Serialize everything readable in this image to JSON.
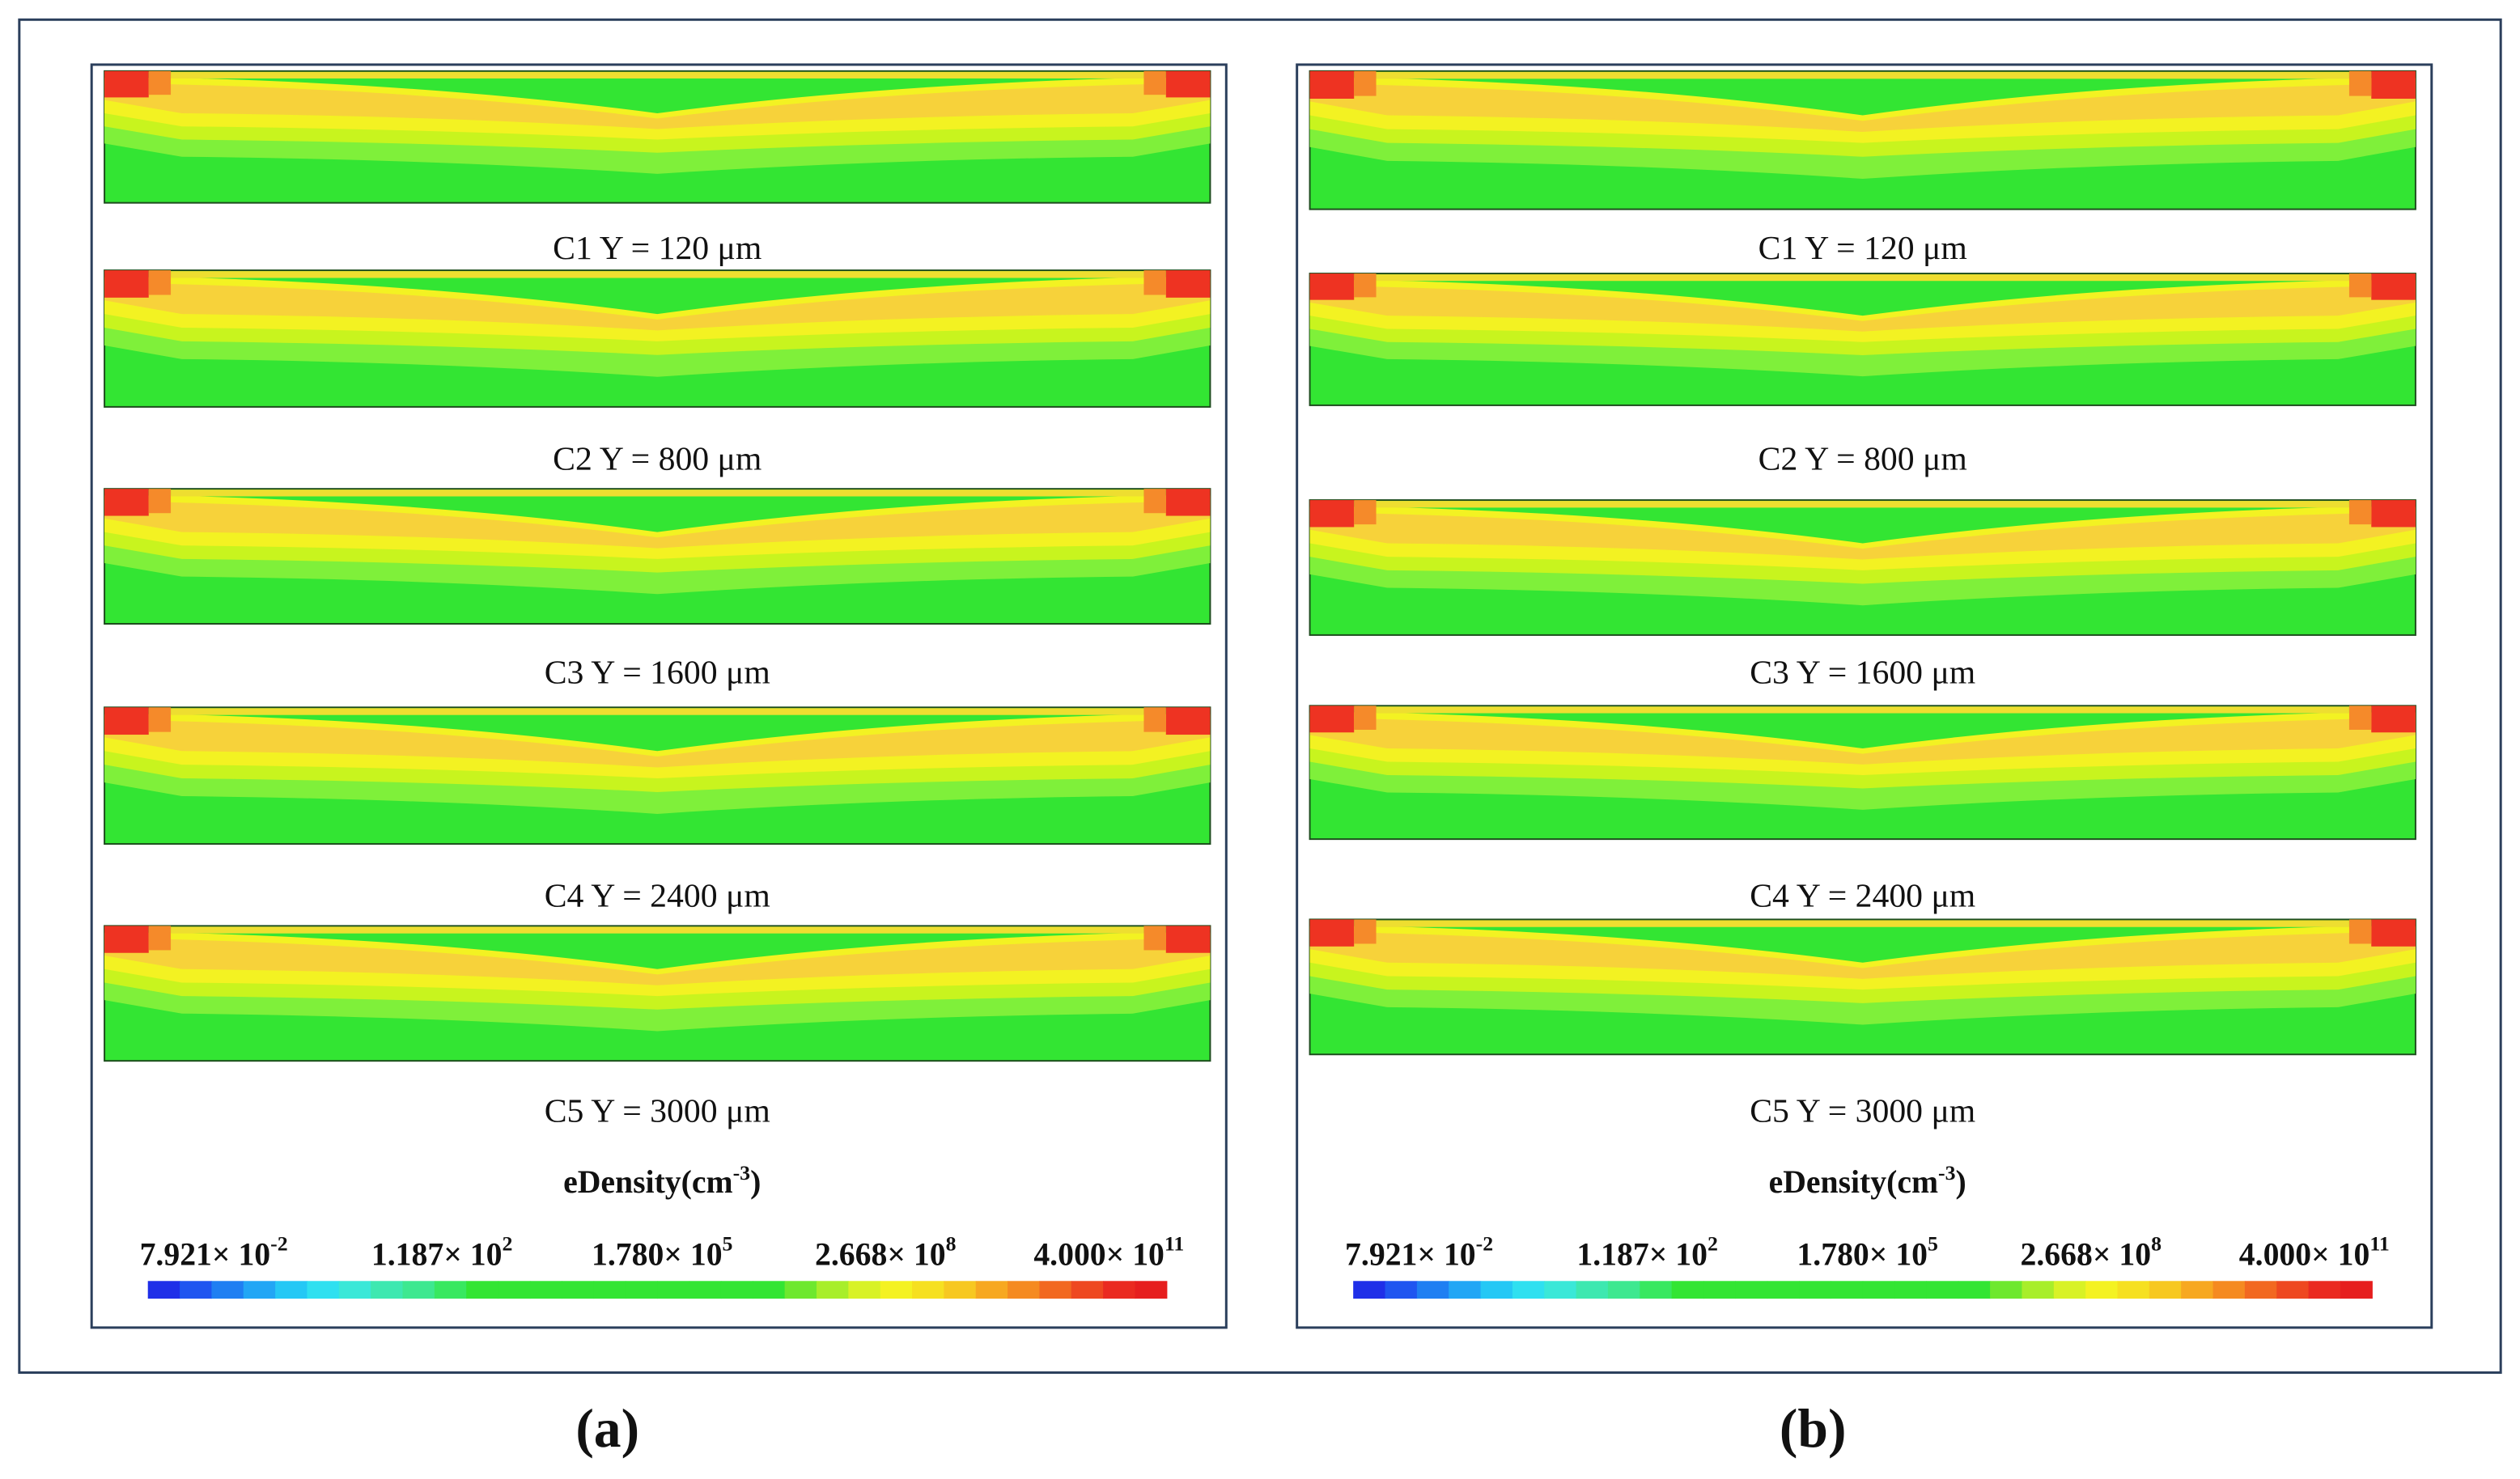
{
  "panels": [
    {
      "label": "(a)",
      "plots": [
        {
          "caption": "C1 Y = 120 μm"
        },
        {
          "caption": "C2 Y = 800 μm"
        },
        {
          "caption": "C3 Y = 1600 μm"
        },
        {
          "caption": "C4 Y = 2400 μm"
        },
        {
          "caption": "C5 Y = 3000 μm"
        }
      ],
      "colorbar": {
        "title": "eDensity(cm",
        "title_exponent": "-3",
        "title_suffix": ")",
        "ticks": [
          {
            "base": "7.921× 10",
            "exponent": "-2"
          },
          {
            "base": "1.187× 10",
            "exponent": "2"
          },
          {
            "base": "1.780× 10",
            "exponent": "5"
          },
          {
            "base": "2.668× 10",
            "exponent": "8"
          },
          {
            "base": "4.000× 10",
            "exponent": "11"
          }
        ]
      }
    },
    {
      "label": "(b)",
      "plots": [
        {
          "caption": "C1 Y = 120 μm"
        },
        {
          "caption": "C2 Y = 800 μm"
        },
        {
          "caption": "C3 Y = 1600 μm"
        },
        {
          "caption": "C4 Y = 2400 μm"
        },
        {
          "caption": "C5 Y = 3000 μm"
        }
      ],
      "colorbar": {
        "title": "eDensity(cm",
        "title_exponent": "-3",
        "title_suffix": ")",
        "ticks": [
          {
            "base": "7.921× 10",
            "exponent": "-2"
          },
          {
            "base": "1.187× 10",
            "exponent": "2"
          },
          {
            "base": "1.780× 10",
            "exponent": "5"
          },
          {
            "base": "2.668× 10",
            "exponent": "8"
          },
          {
            "base": "4.000× 10",
            "exponent": "11"
          }
        ]
      }
    }
  ]
}
